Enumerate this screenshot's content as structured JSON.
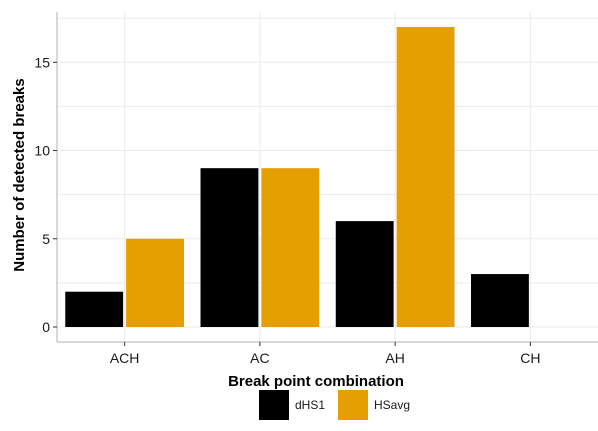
{
  "chart_data": {
    "type": "bar",
    "categories": [
      "ACH",
      "AC",
      "AH",
      "CH"
    ],
    "series": [
      {
        "name": "dHS1",
        "color": "#000000",
        "values": [
          2,
          9,
          6,
          3
        ]
      },
      {
        "name": "HSavg",
        "color": "#E69F00",
        "values": [
          5,
          9,
          17,
          null
        ]
      }
    ],
    "xlabel": "Break point combination",
    "ylabel": "Number of detected breaks",
    "ylim": [
      -0.85,
      17.85
    ],
    "yticks": [
      0,
      5,
      10,
      15
    ],
    "grid": true,
    "legend_position": "bottom"
  }
}
